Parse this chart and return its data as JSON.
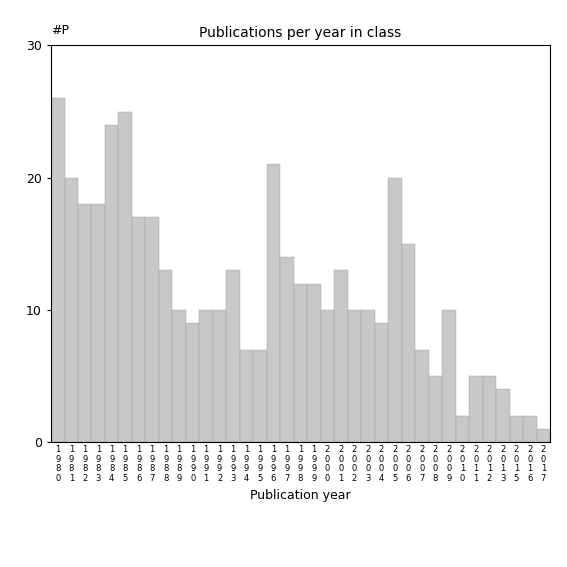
{
  "title": "Publications per year in class",
  "xlabel": "Publication year",
  "ylabel": "#P",
  "bar_color": "#c8c8c8",
  "bar_edge_color": "#a0a0a0",
  "background_color": "#ffffff",
  "ylim": [
    0,
    30
  ],
  "yticks": [
    0,
    10,
    20,
    30
  ],
  "years": [
    "1980",
    "1981",
    "1982",
    "1983",
    "1984",
    "1985",
    "1986",
    "1987",
    "1988",
    "1989",
    "1990",
    "1991",
    "1992",
    "1993",
    "1994",
    "1995",
    "1996",
    "1997",
    "1998",
    "1999",
    "2000",
    "2001",
    "2002",
    "2003",
    "2004",
    "2005",
    "2006",
    "2007",
    "2008",
    "2009",
    "2010",
    "2011",
    "2012",
    "2013",
    "2015",
    "2016",
    "2017"
  ],
  "values": [
    26,
    20,
    18,
    18,
    24,
    25,
    17,
    17,
    13,
    10,
    9,
    10,
    10,
    13,
    7,
    7,
    21,
    14,
    12,
    12,
    10,
    13,
    10,
    10,
    9,
    20,
    15,
    7,
    5,
    10,
    2,
    5,
    5,
    4,
    2,
    2,
    1
  ]
}
